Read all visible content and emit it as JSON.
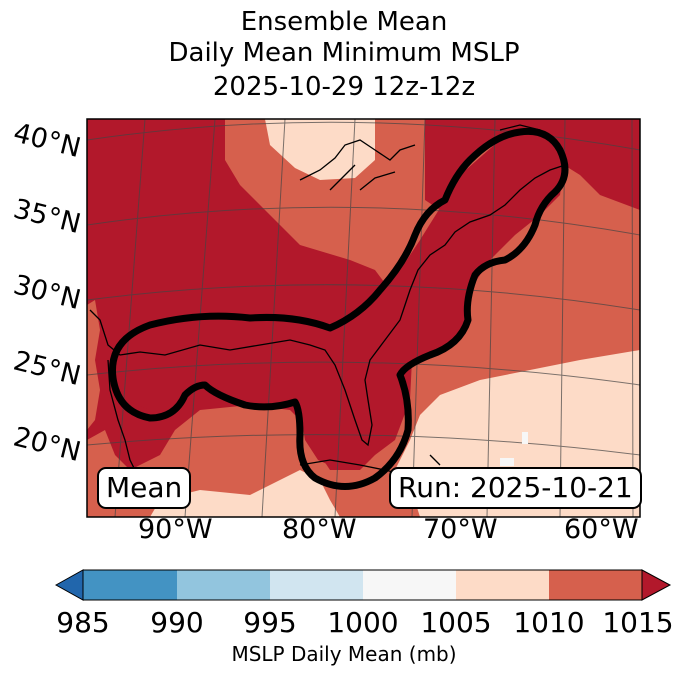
{
  "title": {
    "line1": "Ensemble Mean",
    "line2": "Daily Mean Minimum MSLP",
    "line3": "2025-10-29 12z-12z"
  },
  "map": {
    "lat_labels": [
      "40°N",
      "35°N",
      "30°N",
      "25°N",
      "20°N"
    ],
    "lon_labels": [
      "90°W",
      "80°W",
      "70°W",
      "60°W"
    ],
    "mean_badge": "Mean",
    "run_badge": "Run: 2025-10-21"
  },
  "colorbar": {
    "ticks": [
      "985",
      "990",
      "995",
      "1000",
      "1005",
      "1010",
      "1015"
    ],
    "label": "MSLP Daily Mean (mb)",
    "colors": [
      "#2166ac",
      "#4393c3",
      "#92c5de",
      "#d1e5f0",
      "#f7f7f7",
      "#fddbc7",
      "#d6604d",
      "#b2182b"
    ]
  }
}
